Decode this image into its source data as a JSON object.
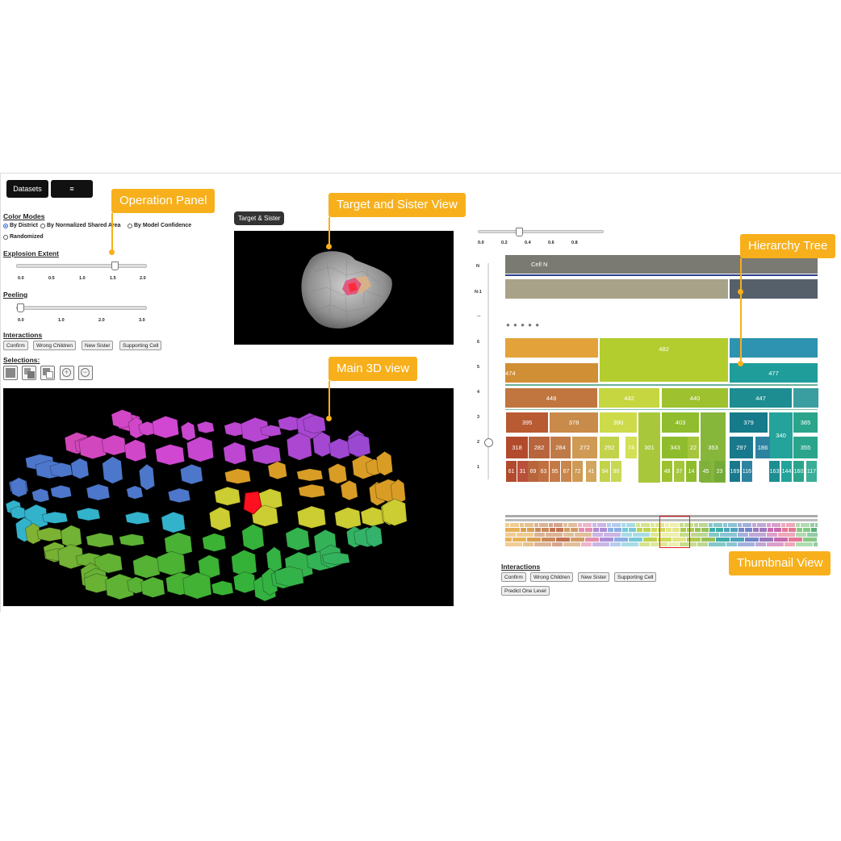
{
  "toolbar": {
    "datasets_label": "Datasets",
    "menu_label": "≡"
  },
  "operation_panel": {
    "color_modes_title": "Color Modes",
    "color_modes": [
      {
        "label": "By District",
        "selected": true
      },
      {
        "label": "By Normalized Shared Area",
        "selected": false
      },
      {
        "label": "By Model Confidence",
        "selected": false
      },
      {
        "label": "Randomized",
        "selected": false
      }
    ],
    "explosion_title": "Explosion Extent",
    "explosion_ticks": [
      "0.0",
      "0.5",
      "1.0",
      "1.5",
      "2.0"
    ],
    "explosion_value": 1.5,
    "peeling_title": "Peeling",
    "peeling_ticks": [
      "0.0",
      "1.0",
      "2.0",
      "3.0"
    ],
    "peeling_value": 0.0,
    "interactions_title": "Interactions",
    "interaction_buttons": [
      "Confirm",
      "Wrong Children",
      "New Sister",
      "Supporting Cell"
    ],
    "selections_title": "Selections:",
    "selection_icons": [
      "select-box-icon",
      "select-add-icon",
      "select-subtract-icon",
      "zoom-in-icon",
      "zoom-out-icon"
    ]
  },
  "target_view": {
    "tab_label": "Target & Sister"
  },
  "callouts": {
    "operation_panel": "Operation Panel",
    "target_sister": "Target and Sister View",
    "main_3d": "Main 3D view",
    "hierarchy_tree": "Hierarchy Tree",
    "thumbnail": "Thumbnail View"
  },
  "tree": {
    "top_slider_ticks": [
      "0.0",
      "0.2",
      "0.4",
      "0.6",
      "0.8"
    ],
    "top_slider_value": 0.4,
    "levels": [
      "N",
      "N-1",
      "...",
      "6",
      "5",
      "4",
      "3",
      "2",
      "1"
    ],
    "cell_n_label": "Cell N",
    "ellipsis": "● ● ● ● ●",
    "row6": [
      {
        "label": "",
        "color": "#e3a33a"
      },
      {
        "label": "482",
        "color": "#b3cd2f"
      },
      {
        "label": "",
        "color": "#2e93b0"
      }
    ],
    "row5": [
      {
        "label": "474",
        "color": "#d18f35"
      },
      {
        "label": "477",
        "color": "#1f9d9a"
      }
    ],
    "row4": [
      {
        "label": "448",
        "color": "#c0763e"
      },
      {
        "label": "442",
        "color": "#c5d640"
      },
      {
        "label": "440",
        "color": "#9dc12f"
      },
      {
        "label": "447",
        "color": "#1d8d92"
      },
      {
        "label": "",
        "color": "#3a9ea0"
      }
    ],
    "row3": [
      {
        "label": "395",
        "color": "#b85a32"
      },
      {
        "label": "378",
        "color": "#c98b4a"
      },
      {
        "label": "390",
        "color": "#cddb4a"
      },
      {
        "label": "301",
        "color": "#a9c73a"
      },
      {
        "label": "403",
        "color": "#8fbd2e"
      },
      {
        "label": "353",
        "color": "#86b63a"
      },
      {
        "label": "379",
        "color": "#157a8a"
      },
      {
        "label": "340",
        "color": "#23a39a"
      },
      {
        "label": "385",
        "color": "#2aa58c"
      }
    ],
    "row2": [
      {
        "label": "318",
        "color": "#b24a2c"
      },
      {
        "label": "282",
        "color": "#b8643c"
      },
      {
        "label": "284",
        "color": "#c07a48"
      },
      {
        "label": "272",
        "color": "#cf9a54"
      },
      {
        "label": "292",
        "color": "#c2d34a"
      },
      {
        "label": "74",
        "color": "#d3df55"
      },
      {
        "label": "343",
        "color": "#8fbc2c"
      },
      {
        "label": "22",
        "color": "#a5c63c"
      },
      {
        "label": "297",
        "color": "#18788c"
      },
      {
        "label": "186",
        "color": "#2c83a0"
      },
      {
        "label": "355",
        "color": "#2aa58c"
      }
    ],
    "row1": [
      "61",
      "31",
      "69",
      "63",
      "95",
      "67",
      "72",
      "41",
      "94",
      "90",
      "48",
      "37",
      "14",
      "9",
      "45",
      "23",
      "169",
      "116",
      "163",
      "144",
      "160",
      "117"
    ]
  },
  "thumbnail": {
    "interactions_title": "Interactions",
    "buttons": [
      "Confirm",
      "Wrong Children",
      "New Sister",
      "Supporting Cell"
    ],
    "predict_button": "Predict One Level"
  },
  "colors": {
    "accent": "#f7b01c",
    "highlight": "#e01c24",
    "cell_n": "#7a7a72",
    "n1_left": "#a8a288",
    "n1_right": "#56606b"
  }
}
